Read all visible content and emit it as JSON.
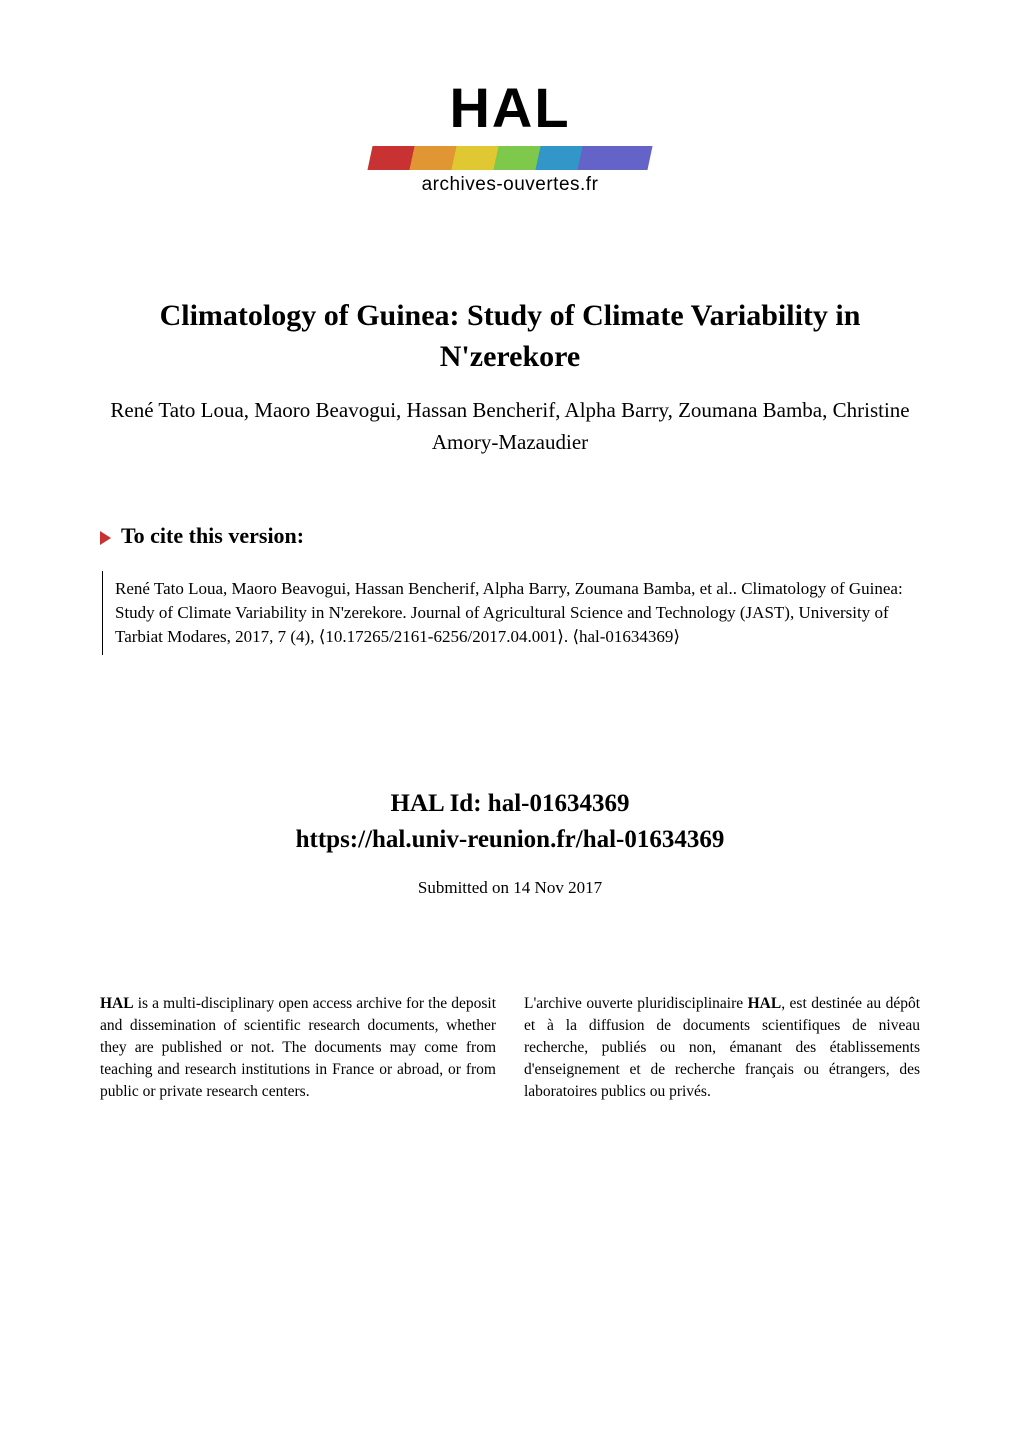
{
  "logo": {
    "text": "HAL",
    "subtitle": "archives-ouvertes.fr",
    "bar_colors": [
      "#c83232",
      "#e09632",
      "#e0c832",
      "#7ec84b",
      "#3296c8",
      "#6464c8"
    ]
  },
  "title": "Climatology of Guinea: Study of Climate Variability in N'zerekore",
  "authors": "René Tato Loua, Maoro Beavogui, Hassan Bencherif, Alpha Barry, Zoumana Bamba, Christine Amory-Mazaudier",
  "cite_heading": "To cite this version:",
  "citation": "René Tato Loua, Maoro Beavogui, Hassan Bencherif, Alpha Barry, Zoumana Bamba, et al.. Climatology of Guinea: Study of Climate Variability in N'zerekore. Journal of Agricultural Science and Technology (JAST), University of Tarbiat Modares, 2017, 7 (4), ⟨10.17265/2161-6256/2017.04.001⟩. ⟨hal-01634369⟩",
  "hal_id_label": "HAL Id: hal-01634369",
  "hal_url": "https://hal.univ-reunion.fr/hal-01634369",
  "submitted": "Submitted on 14 Nov 2017",
  "footer": {
    "left": "HAL is a multi-disciplinary open access archive for the deposit and dissemination of scientific research documents, whether they are published or not. The documents may come from teaching and research institutions in France or abroad, or from public or private research centers.",
    "right": "L'archive ouverte pluridisciplinaire HAL, est destinée au dépôt et à la diffusion de documents scientifiques de niveau recherche, publiés ou non, émanant des établissements d'enseignement et de recherche français ou étrangers, des laboratoires publics ou privés."
  },
  "colors": {
    "background": "#ffffff",
    "text": "#000000",
    "triangle": "#c83232"
  },
  "typography": {
    "title_fontsize": 30,
    "authors_fontsize": 21,
    "cite_heading_fontsize": 22,
    "citation_fontsize": 17,
    "hal_id_fontsize": 25,
    "submitted_fontsize": 17,
    "footer_fontsize": 15.5,
    "logo_fontsize": 56,
    "logo_subtitle_fontsize": 19
  }
}
